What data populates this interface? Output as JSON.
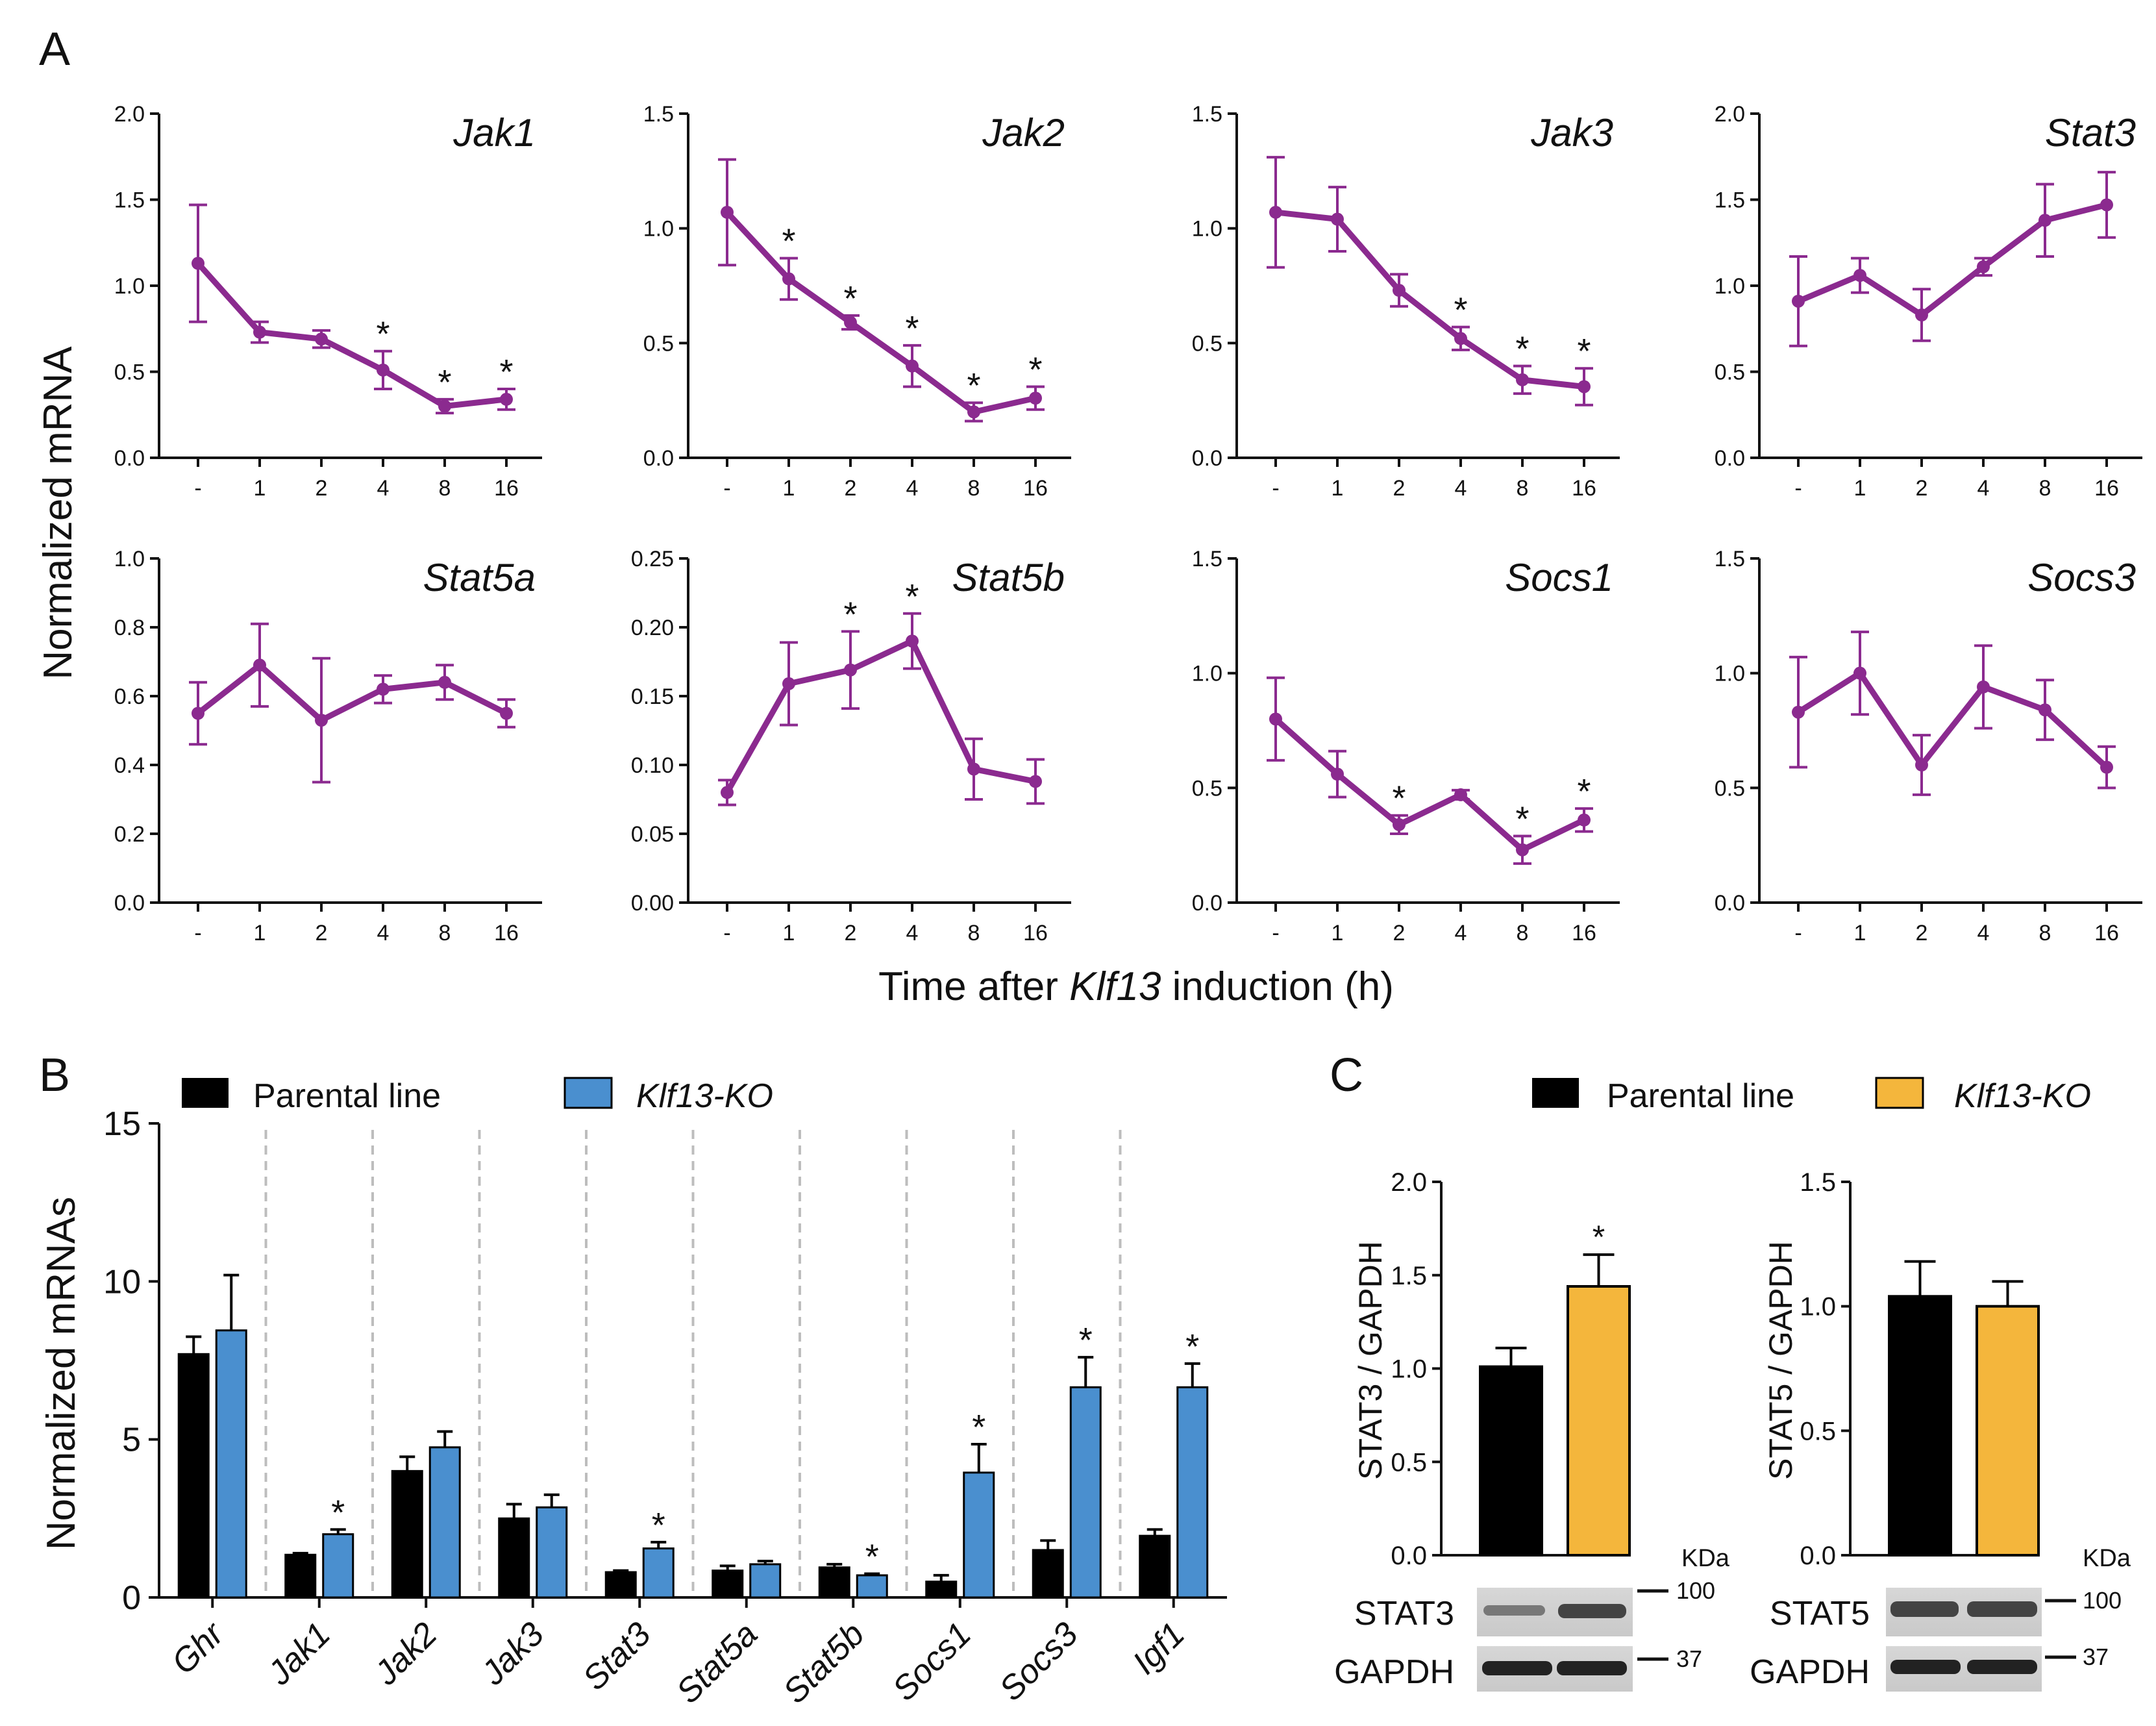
{
  "panel_labels": {
    "a": "A",
    "b": "B",
    "c": "C"
  },
  "panel_a": {
    "ylabel": "Normalized mRNA",
    "xlabel_prefix": "Time after ",
    "xlabel_gene": "Klf13",
    "xlabel_suffix": " induction (h)"
  },
  "panel_b": {
    "legend": [
      "Parental line",
      "Klf13-KO"
    ],
    "ylabel": "Normalized mRNAs"
  },
  "panel_c": {
    "legend": [
      "Parental line",
      "Klf13-KO"
    ],
    "left_ylabel": "STAT3 / GAPDH",
    "right_ylabel": "STAT5 / GAPDH",
    "kda_unit": "KDa",
    "blot_left": {
      "band1": "STAT3",
      "band2": "GAPDH",
      "mw1": "100",
      "mw2": "37"
    },
    "blot_right": {
      "band1": "STAT5",
      "band2": "GAPDH",
      "mw1": "100",
      "mw2": "37"
    }
  },
  "colors": {
    "purple": "#8B2A8F",
    "black": "#000000",
    "blue": "#4A8FCF",
    "orange": "#F4B63C"
  },
  "chart_data": [
    {
      "type": "line",
      "title": "Jak1",
      "categories": [
        "-",
        "1",
        "2",
        "4",
        "8",
        "16"
      ],
      "values": [
        1.13,
        0.73,
        0.69,
        0.51,
        0.3,
        0.34
      ],
      "errors": [
        0.34,
        0.06,
        0.05,
        0.11,
        0.04,
        0.06
      ],
      "significant": [
        false,
        false,
        false,
        true,
        true,
        true
      ],
      "ylim": [
        0,
        2.0
      ],
      "yticks": [
        "0.0",
        "0.5",
        "1.0",
        "1.5",
        "2.0"
      ],
      "ylabel": "Normalized mRNA",
      "xlabel": "Time after Klf13 induction (h)"
    },
    {
      "type": "line",
      "title": "Jak2",
      "categories": [
        "-",
        "1",
        "2",
        "4",
        "8",
        "16"
      ],
      "values": [
        1.07,
        0.78,
        0.59,
        0.4,
        0.2,
        0.26
      ],
      "errors": [
        0.23,
        0.09,
        0.03,
        0.09,
        0.04,
        0.05
      ],
      "significant": [
        false,
        true,
        true,
        true,
        true,
        true
      ],
      "ylim": [
        0,
        1.5
      ],
      "yticks": [
        "0.0",
        "0.5",
        "1.0",
        "1.5"
      ]
    },
    {
      "type": "line",
      "title": "Jak3",
      "categories": [
        "-",
        "1",
        "2",
        "4",
        "8",
        "16"
      ],
      "values": [
        1.07,
        1.04,
        0.73,
        0.52,
        0.34,
        0.31
      ],
      "errors": [
        0.24,
        0.14,
        0.07,
        0.05,
        0.06,
        0.08
      ],
      "significant": [
        false,
        false,
        false,
        true,
        true,
        true
      ],
      "ylim": [
        0,
        1.5
      ],
      "yticks": [
        "0.0",
        "0.5",
        "1.0",
        "1.5"
      ]
    },
    {
      "type": "line",
      "title": "Stat3",
      "categories": [
        "-",
        "1",
        "2",
        "4",
        "8",
        "16"
      ],
      "values": [
        0.91,
        1.06,
        0.83,
        1.11,
        1.38,
        1.47
      ],
      "errors": [
        0.26,
        0.1,
        0.15,
        0.05,
        0.21,
        0.19
      ],
      "significant": [
        false,
        false,
        false,
        false,
        false,
        false
      ],
      "ylim": [
        0,
        2.0
      ],
      "yticks": [
        "0.0",
        "0.5",
        "1.0",
        "1.5",
        "2.0"
      ]
    },
    {
      "type": "line",
      "title": "Stat5a",
      "categories": [
        "-",
        "1",
        "2",
        "4",
        "8",
        "16"
      ],
      "values": [
        0.55,
        0.69,
        0.53,
        0.62,
        0.64,
        0.55
      ],
      "errors": [
        0.09,
        0.12,
        0.18,
        0.04,
        0.05,
        0.04
      ],
      "significant": [
        false,
        false,
        false,
        false,
        false,
        false
      ],
      "ylim": [
        0,
        1.0
      ],
      "yticks": [
        "0.0",
        "0.2",
        "0.4",
        "0.6",
        "0.8",
        "1.0"
      ]
    },
    {
      "type": "line",
      "title": "Stat5b",
      "categories": [
        "-",
        "1",
        "2",
        "4",
        "8",
        "16"
      ],
      "values": [
        0.08,
        0.159,
        0.169,
        0.19,
        0.097,
        0.088
      ],
      "errors": [
        0.009,
        0.03,
        0.028,
        0.02,
        0.022,
        0.016
      ],
      "significant": [
        false,
        false,
        true,
        true,
        false,
        false
      ],
      "ylim": [
        0,
        0.25
      ],
      "yticks": [
        "0.00",
        "0.05",
        "0.10",
        "0.15",
        "0.20",
        "0.25"
      ]
    },
    {
      "type": "line",
      "title": "Socs1",
      "categories": [
        "-",
        "1",
        "2",
        "4",
        "8",
        "16"
      ],
      "values": [
        0.8,
        0.56,
        0.34,
        0.47,
        0.23,
        0.36
      ],
      "errors": [
        0.18,
        0.1,
        0.04,
        0.02,
        0.06,
        0.05
      ],
      "significant": [
        false,
        false,
        true,
        false,
        true,
        true
      ],
      "ylim": [
        0,
        1.5
      ],
      "yticks": [
        "0.0",
        "0.5",
        "1.0",
        "1.5"
      ]
    },
    {
      "type": "line",
      "title": "Socs3",
      "categories": [
        "-",
        "1",
        "2",
        "4",
        "8",
        "16"
      ],
      "values": [
        0.83,
        1.0,
        0.6,
        0.94,
        0.84,
        0.59
      ],
      "errors": [
        0.24,
        0.18,
        0.13,
        0.18,
        0.13,
        0.09
      ],
      "significant": [
        false,
        false,
        false,
        false,
        false,
        false
      ],
      "ylim": [
        0,
        1.5
      ],
      "yticks": [
        "0.0",
        "0.5",
        "1.0",
        "1.5"
      ]
    },
    {
      "type": "bar",
      "title": "",
      "categories": [
        "Ghr",
        "Jak1",
        "Jak2",
        "Jak3",
        "Stat3",
        "Stat5a",
        "Stat5b",
        "Socs1",
        "Socs3",
        "Igf1"
      ],
      "series": [
        {
          "name": "Parental line",
          "values": [
            7.7,
            1.35,
            4.0,
            2.5,
            0.8,
            0.85,
            0.95,
            0.5,
            1.5,
            1.95
          ],
          "errors": [
            0.55,
            0.05,
            0.45,
            0.45,
            0.05,
            0.15,
            0.1,
            0.2,
            0.3,
            0.2
          ]
        },
        {
          "name": "Klf13-KO",
          "values": [
            8.45,
            2.0,
            4.75,
            2.85,
            1.55,
            1.05,
            0.7,
            3.95,
            6.65,
            6.65
          ],
          "errors": [
            1.75,
            0.15,
            0.5,
            0.4,
            0.2,
            0.1,
            0.05,
            0.9,
            0.95,
            0.75
          ],
          "significant": [
            false,
            true,
            false,
            false,
            true,
            false,
            true,
            true,
            true,
            true
          ]
        }
      ],
      "ylim": [
        0,
        15
      ],
      "yticks": [
        "0",
        "5",
        "10",
        "15"
      ],
      "ylabel": "Normalized mRNAs"
    },
    {
      "type": "bar",
      "title": "",
      "categories": [
        "Parental line",
        "Klf13-KO"
      ],
      "values": [
        1.01,
        1.44
      ],
      "errors": [
        0.1,
        0.17
      ],
      "significant": [
        false,
        true
      ],
      "ylim": [
        0,
        2.0
      ],
      "yticks": [
        "0.0",
        "0.5",
        "1.0",
        "1.5",
        "2.0"
      ],
      "ylabel": "STAT3 / GAPDH"
    },
    {
      "type": "bar",
      "title": "",
      "categories": [
        "Parental line",
        "Klf13-KO"
      ],
      "values": [
        1.04,
        1.0
      ],
      "errors": [
        0.14,
        0.1
      ],
      "significant": [
        false,
        false
      ],
      "ylim": [
        0,
        1.5
      ],
      "yticks": [
        "0.0",
        "0.5",
        "1.0",
        "1.5"
      ],
      "ylabel": "STAT5 / GAPDH"
    }
  ]
}
